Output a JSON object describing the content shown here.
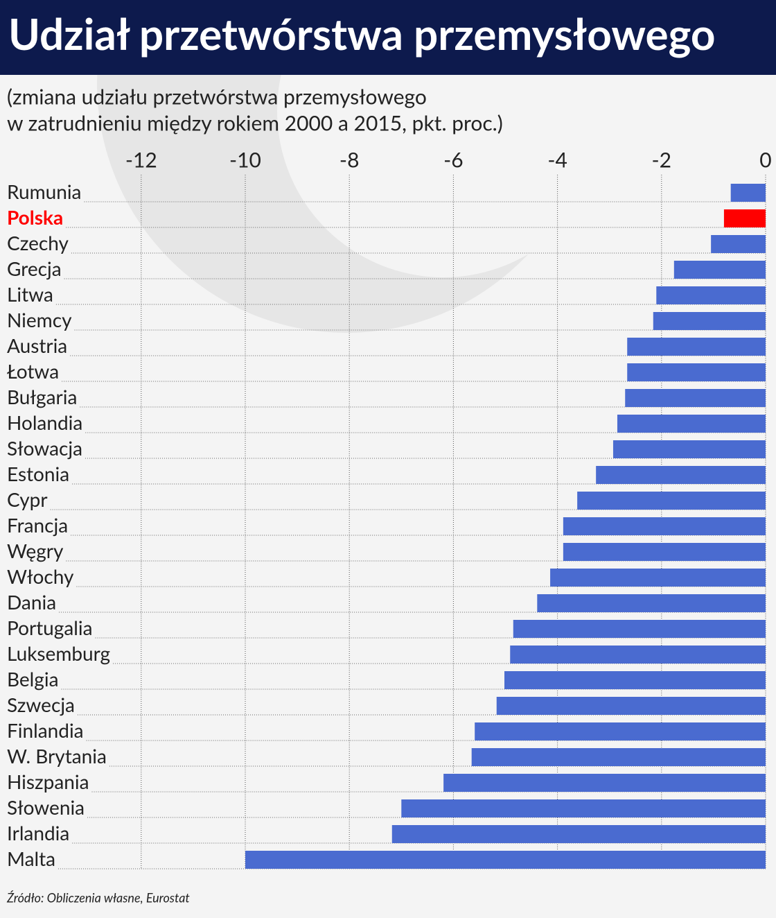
{
  "chart_data": {
    "type": "hbar",
    "title": "Udział przetwórstwa przemysłowego",
    "subtitle": [
      "(zmiana udziału przetwórstwa przemysłowego",
      "w zatrudnieniu między rokiem 2000 a 2015, pkt. proc.)"
    ],
    "source": "Źródło: Obliczenia własne, Eurostat",
    "categories": [
      "Rumunia",
      "Polska",
      "Czechy",
      "Grecja",
      "Litwa",
      "Niemcy",
      "Austria",
      "Łotwa",
      "Bułgaria",
      "Holandia",
      "Słowacja",
      "Estonia",
      "Cypr",
      "Francja",
      "Węgry",
      "Włochy",
      "Dania",
      "Portugalia",
      "Luksemburg",
      "Belgia",
      "Szwecja",
      "Finlandia",
      "W. Brytania",
      "Hiszpania",
      "Słowenia",
      "Irlandia",
      "Malta"
    ],
    "values": [
      -0.67,
      -0.8,
      -1.05,
      -1.76,
      -2.1,
      -2.16,
      -2.66,
      -2.66,
      -2.7,
      -2.85,
      -2.93,
      -3.26,
      -3.62,
      -3.89,
      -3.89,
      -4.14,
      -4.39,
      -4.85,
      -4.91,
      -5.02,
      -5.17,
      -5.59,
      -5.65,
      -6.19,
      -7.0,
      -7.18,
      -10.0
    ],
    "colors": [
      "#4a6bd0",
      "#ff0000",
      "#4a6bd0",
      "#4a6bd0",
      "#4a6bd0",
      "#4a6bd0",
      "#4a6bd0",
      "#4a6bd0",
      "#4a6bd0",
      "#4a6bd0",
      "#4a6bd0",
      "#4a6bd0",
      "#4a6bd0",
      "#4a6bd0",
      "#4a6bd0",
      "#4a6bd0",
      "#4a6bd0",
      "#4a6bd0",
      "#4a6bd0",
      "#4a6bd0",
      "#4a6bd0",
      "#4a6bd0",
      "#4a6bd0",
      "#4a6bd0",
      "#4a6bd0",
      "#4a6bd0",
      "#4a6bd0"
    ],
    "xlim": [
      -13,
      0
    ],
    "xticks": [
      -12,
      -10,
      -8,
      -6,
      -4,
      -2,
      0
    ],
    "grid": true
  }
}
